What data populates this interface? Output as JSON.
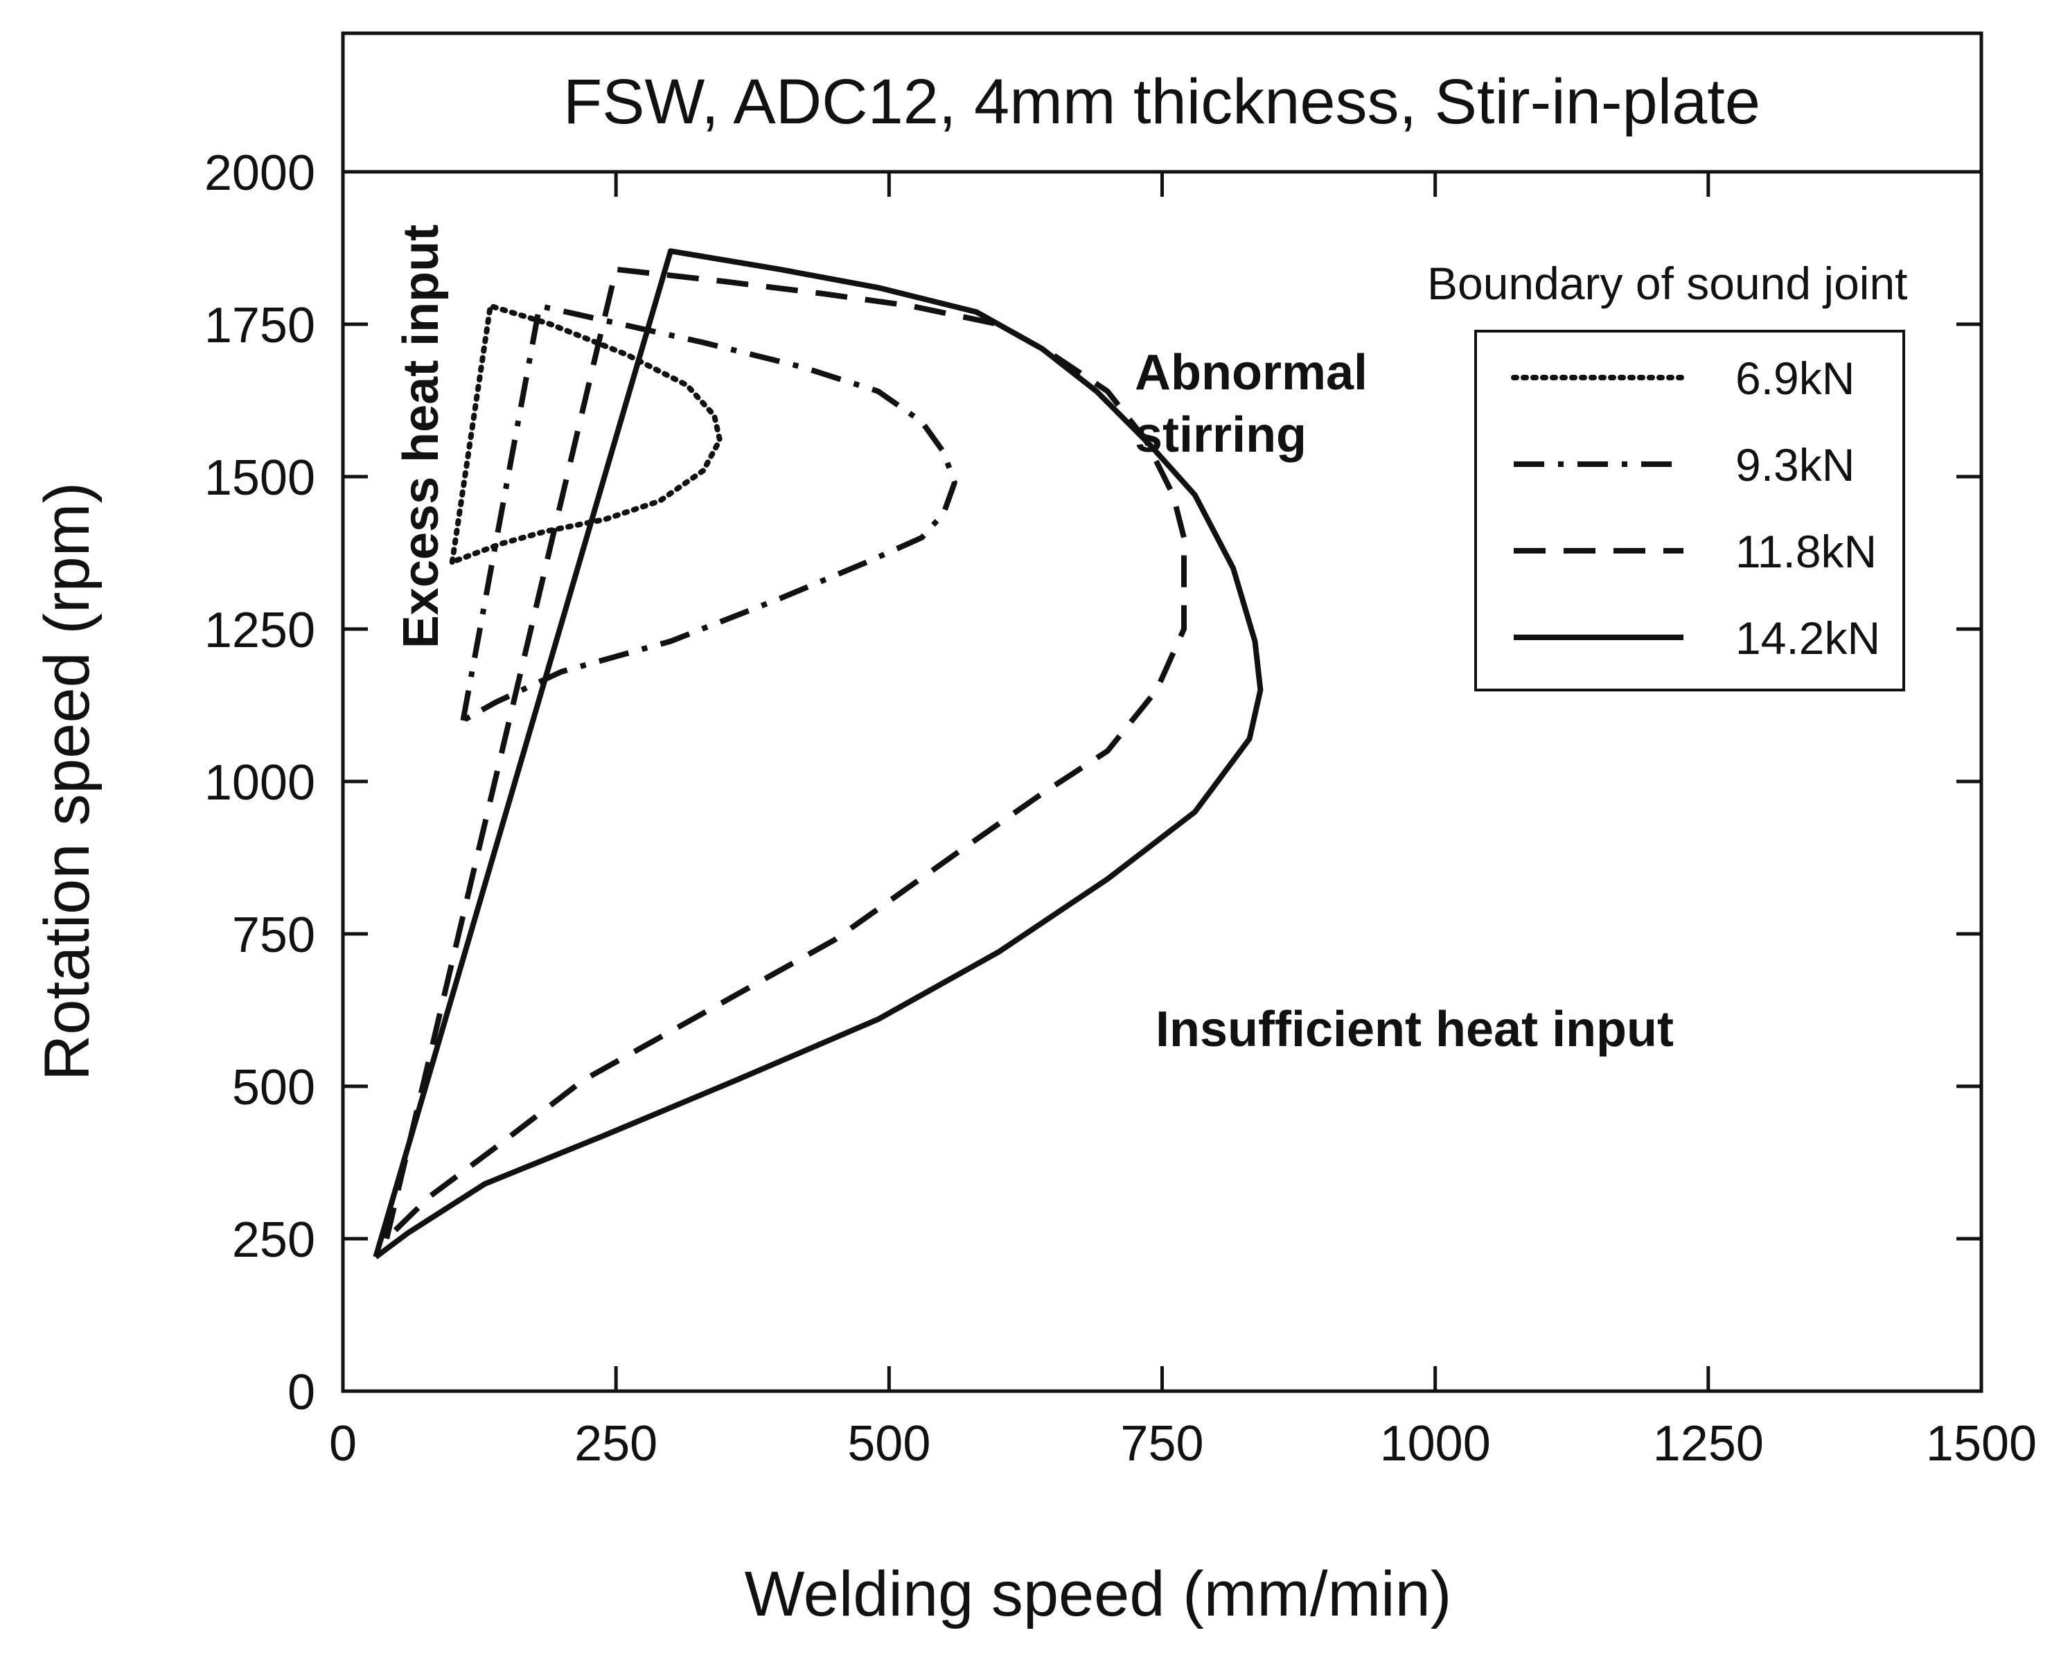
{
  "chart_data": {
    "type": "line",
    "title": "FSW, ADC12, 4mm thickness, Stir-in-plate",
    "xlabel": "Welding speed (mm/min)",
    "ylabel": "Rotation speed (rpm)",
    "xlim": [
      0,
      1500
    ],
    "ylim": [
      0,
      2000
    ],
    "xticks": [
      0,
      250,
      500,
      750,
      1000,
      1250,
      1500
    ],
    "yticks": [
      0,
      250,
      500,
      750,
      1000,
      1250,
      1500,
      1750,
      2000
    ],
    "grid": false,
    "legend": {
      "title": "Boundary of sound joint",
      "placement": "top-right"
    },
    "series": [
      {
        "name": "6.9kN",
        "style": "dotted",
        "points": [
          [
            100,
            1360
          ],
          [
            135,
            1780
          ],
          [
            190,
            1750
          ],
          [
            260,
            1700
          ],
          [
            315,
            1650
          ],
          [
            340,
            1600
          ],
          [
            345,
            1560
          ],
          [
            330,
            1510
          ],
          [
            290,
            1460
          ],
          [
            240,
            1430
          ],
          [
            185,
            1410
          ],
          [
            145,
            1390
          ],
          [
            100,
            1360
          ]
        ]
      },
      {
        "name": "9.3kN",
        "style": "dash-dot",
        "points": [
          [
            110,
            1100
          ],
          [
            180,
            1780
          ],
          [
            230,
            1760
          ],
          [
            330,
            1720
          ],
          [
            420,
            1680
          ],
          [
            490,
            1640
          ],
          [
            530,
            1590
          ],
          [
            550,
            1540
          ],
          [
            560,
            1490
          ],
          [
            550,
            1440
          ],
          [
            530,
            1400
          ],
          [
            480,
            1360
          ],
          [
            400,
            1300
          ],
          [
            300,
            1230
          ],
          [
            200,
            1180
          ],
          [
            140,
            1130
          ],
          [
            110,
            1100
          ]
        ]
      },
      {
        "name": "11.8kN",
        "style": "dashed",
        "points": [
          [
            40,
            250
          ],
          [
            250,
            1840
          ],
          [
            350,
            1820
          ],
          [
            440,
            1800
          ],
          [
            520,
            1780
          ],
          [
            600,
            1750
          ],
          [
            650,
            1700
          ],
          [
            700,
            1640
          ],
          [
            735,
            1560
          ],
          [
            760,
            1470
          ],
          [
            770,
            1400
          ],
          [
            770,
            1250
          ],
          [
            745,
            1150
          ],
          [
            700,
            1050
          ],
          [
            640,
            980
          ],
          [
            560,
            880
          ],
          [
            450,
            740
          ],
          [
            330,
            620
          ],
          [
            220,
            510
          ],
          [
            140,
            400
          ],
          [
            80,
            320
          ],
          [
            40,
            250
          ]
        ]
      },
      {
        "name": "14.2kN",
        "style": "solid",
        "points": [
          [
            30,
            220
          ],
          [
            300,
            1870
          ],
          [
            400,
            1840
          ],
          [
            490,
            1810
          ],
          [
            580,
            1770
          ],
          [
            640,
            1710
          ],
          [
            690,
            1640
          ],
          [
            740,
            1550
          ],
          [
            780,
            1470
          ],
          [
            815,
            1350
          ],
          [
            835,
            1230
          ],
          [
            840,
            1150
          ],
          [
            830,
            1070
          ],
          [
            780,
            950
          ],
          [
            700,
            840
          ],
          [
            600,
            720
          ],
          [
            490,
            610
          ],
          [
            360,
            510
          ],
          [
            240,
            420
          ],
          [
            130,
            340
          ],
          [
            60,
            260
          ],
          [
            30,
            220
          ]
        ]
      }
    ],
    "annotations": [
      {
        "text": "Excess heat input",
        "near_data": [
          85,
          1650
        ]
      },
      {
        "text": "Abnormal",
        "near_data": [
          730,
          1680
        ]
      },
      {
        "text": "stirring",
        "near_data": [
          730,
          1570
        ]
      },
      {
        "text": "Insufficient heat input",
        "near_data": [
          1060,
          605
        ]
      }
    ]
  }
}
